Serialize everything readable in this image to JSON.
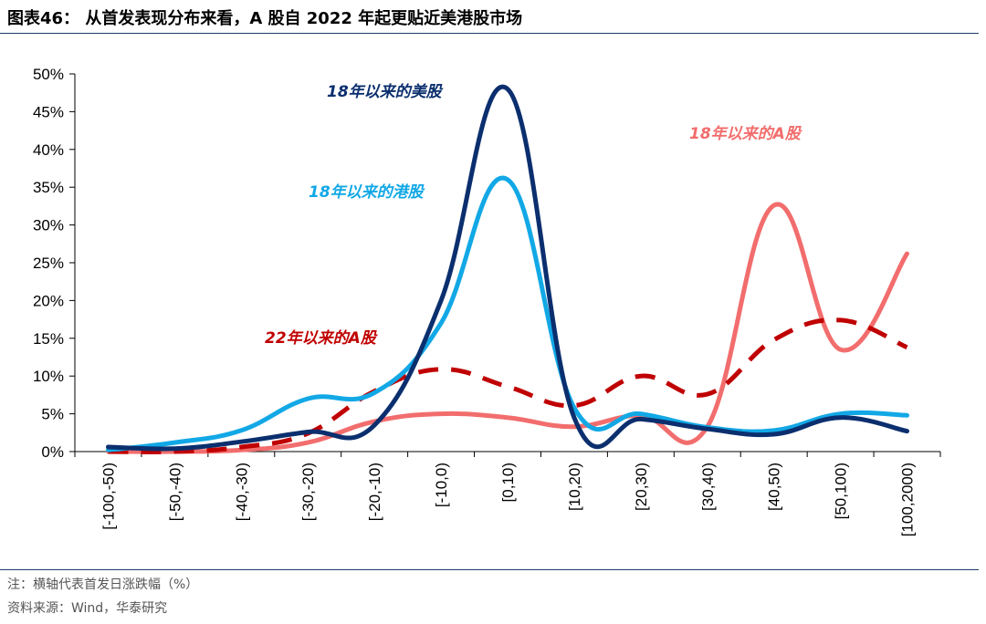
{
  "header": {
    "title": "图表46： 从首发表现分布来看，A 股自 2022 年起更贴近美港股市场"
  },
  "footer": {
    "note": "注：横轴代表首发日涨跌幅（%）",
    "source": "资料来源：Wind，华泰研究"
  },
  "chart_data": {
    "type": "line",
    "title": "",
    "xlabel": "",
    "ylabel": "",
    "categories": [
      "[-100,-50)",
      "[-50,-40)",
      "[-40,-30)",
      "[-30,-20)",
      "[-20,-10)",
      "[-10,0)",
      "[0,10)",
      "[10,20)",
      "[20,30)",
      "[30,40)",
      "[40,50)",
      "[50,100)",
      "[100,2000)"
    ],
    "ylim": [
      0,
      50
    ],
    "yticks": [
      "0%",
      "5%",
      "10%",
      "15%",
      "20%",
      "25%",
      "30%",
      "35%",
      "40%",
      "45%",
      "50%"
    ],
    "grid": false,
    "series": [
      {
        "name": "18年以来的美股",
        "color": "#0b2f6e",
        "dash": "solid",
        "values": [
          0.6,
          0.4,
          1.3,
          2.6,
          3.5,
          20.0,
          48.0,
          4.5,
          4.3,
          3.0,
          2.3,
          4.5,
          2.7
        ]
      },
      {
        "name": "18年以来的港股",
        "color": "#12a8e6",
        "dash": "solid",
        "values": [
          0.2,
          1.2,
          2.8,
          7.0,
          7.8,
          17.0,
          36.0,
          5.8,
          5.0,
          3.2,
          2.8,
          5.0,
          4.8
        ]
      },
      {
        "name": "18年以来的A股",
        "color": "#f26d6d",
        "dash": "solid",
        "values": [
          0.0,
          0.0,
          0.2,
          1.2,
          4.0,
          5.0,
          4.5,
          3.3,
          4.8,
          3.3,
          32.6,
          13.5,
          26.2
        ]
      },
      {
        "name": "22年以来的A股",
        "color": "#c00000",
        "dash": "dashed",
        "values": [
          0.0,
          0.0,
          0.6,
          2.4,
          8.0,
          10.9,
          8.6,
          6.1,
          10.0,
          7.6,
          14.8,
          17.4,
          13.8
        ]
      }
    ],
    "annotations": [
      {
        "text": "18年以来的美股",
        "color": "#0b2f6e"
      },
      {
        "text": "18年以来的港股",
        "color": "#12a8e6"
      },
      {
        "text": "18年以来的A股",
        "color": "#f26d6d"
      },
      {
        "text": "22年以来的A股",
        "color": "#c00000"
      }
    ]
  }
}
